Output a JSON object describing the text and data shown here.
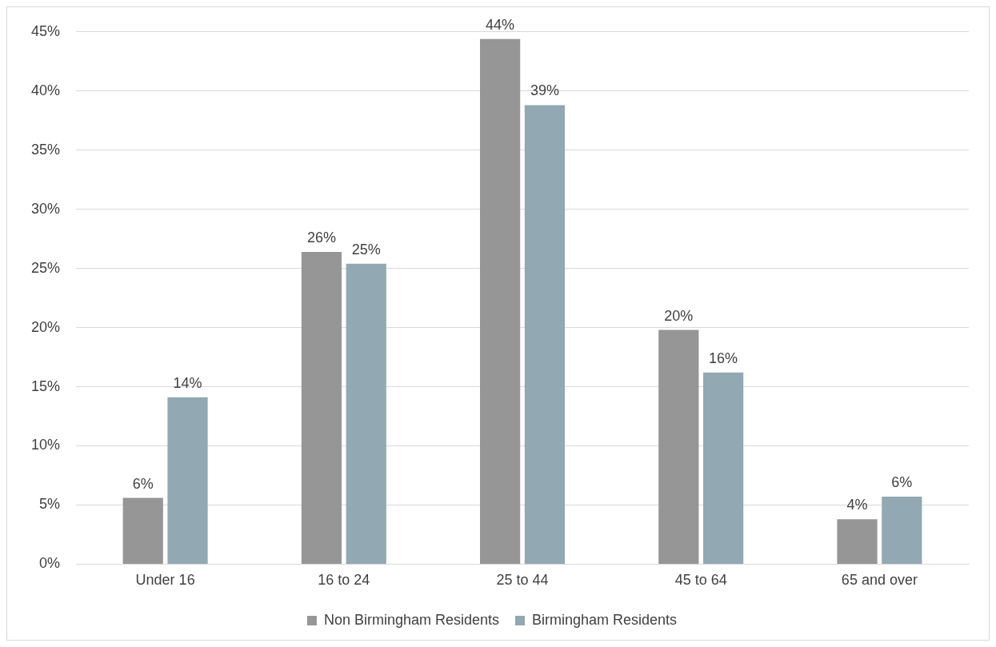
{
  "chart_data": {
    "type": "bar",
    "categories": [
      "Under 16",
      "16 to 24",
      "25 to 44",
      "45 to 64",
      "65 and over"
    ],
    "series": [
      {
        "name": "Non Birmingham Residents",
        "color": "#969696",
        "values": [
          5.6,
          26.4,
          44.4,
          19.8,
          3.8
        ],
        "value_labels": [
          "6%",
          "26%",
          "44%",
          "20%",
          "4%"
        ]
      },
      {
        "name": "Birmingham Residents",
        "color": "#92a8b2",
        "values": [
          14.1,
          25.4,
          38.8,
          16.2,
          5.7
        ],
        "value_labels": [
          "14%",
          "25%",
          "39%",
          "16%",
          "6%"
        ]
      }
    ],
    "ylim": [
      0,
      45
    ],
    "yticks": [
      {
        "value": 0,
        "label": "0%"
      },
      {
        "value": 5,
        "label": "5%"
      },
      {
        "value": 10,
        "label": "10%"
      },
      {
        "value": 15,
        "label": "15%"
      },
      {
        "value": 20,
        "label": "20%"
      },
      {
        "value": 25,
        "label": "25%"
      },
      {
        "value": 30,
        "label": "30%"
      },
      {
        "value": 35,
        "label": "35%"
      },
      {
        "value": 40,
        "label": "40%"
      },
      {
        "value": 45,
        "label": "45%"
      }
    ],
    "grid": "y",
    "legend": "bottom"
  }
}
